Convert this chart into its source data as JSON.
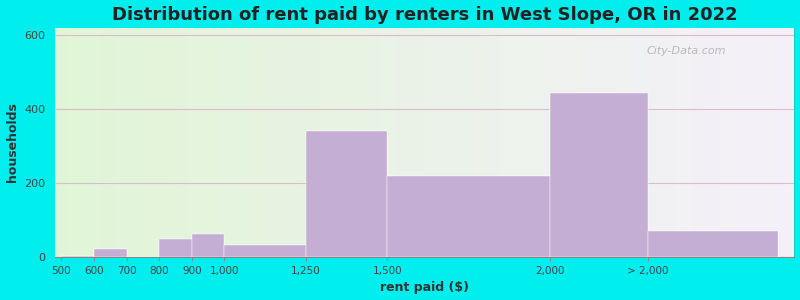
{
  "title": "Distribution of rent paid by renters in West Slope, OR in 2022",
  "xlabel": "rent paid ($)",
  "ylabel": "households",
  "tick_labels": [
    "500",
    "600",
    "700",
    "800",
    "900",
    "1,000",
    "1,250",
    "1,500",
    "2,000",
    "> 2,000"
  ],
  "bar_heights": [
    2,
    20,
    0,
    48,
    62,
    32,
    340,
    218,
    443,
    70
  ],
  "bar_color": "#c4aed4",
  "ylim": [
    0,
    620
  ],
  "yticks": [
    0,
    200,
    400,
    600
  ],
  "background_color": "#00eeee",
  "title_fontsize": 13,
  "axis_label_fontsize": 9,
  "watermark": "City-Data.com"
}
